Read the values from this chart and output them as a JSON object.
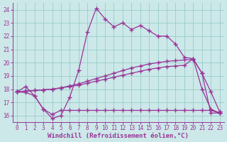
{
  "xlabel": "Windchill (Refroidissement éolien,°C)",
  "bg_color": "#cce8e8",
  "grid_color": "#99cccc",
  "line_color": "#993399",
  "xlim": [
    -0.5,
    23.5
  ],
  "ylim": [
    15.5,
    24.5
  ],
  "yticks": [
    16,
    17,
    18,
    19,
    20,
    21,
    22,
    23,
    24
  ],
  "xticks": [
    0,
    1,
    2,
    3,
    4,
    5,
    6,
    7,
    8,
    9,
    10,
    11,
    12,
    13,
    14,
    15,
    16,
    17,
    18,
    19,
    20,
    21,
    22,
    23
  ],
  "line1_x": [
    0,
    1,
    2,
    3,
    4,
    5,
    6,
    7,
    8,
    9,
    10,
    11,
    12,
    13,
    14,
    15,
    16,
    17,
    18,
    19,
    20,
    21,
    22,
    23
  ],
  "line1_y": [
    17.8,
    18.2,
    17.5,
    16.5,
    15.8,
    16.0,
    17.4,
    19.4,
    22.3,
    24.1,
    23.3,
    22.7,
    23.0,
    22.5,
    22.8,
    22.4,
    22.0,
    22.0,
    21.4,
    20.4,
    20.3,
    19.2,
    16.2,
    16.2
  ],
  "line2_x": [
    0,
    1,
    2,
    3,
    4,
    5,
    6,
    7,
    8,
    9,
    10,
    11,
    12,
    13,
    14,
    15,
    16,
    17,
    18,
    19,
    20,
    21,
    22,
    23
  ],
  "line2_y": [
    17.8,
    17.85,
    17.9,
    17.95,
    18.0,
    18.1,
    18.25,
    18.4,
    18.6,
    18.8,
    19.0,
    19.2,
    19.4,
    19.6,
    19.75,
    19.9,
    20.0,
    20.1,
    20.15,
    20.2,
    20.25,
    19.2,
    17.8,
    16.3
  ],
  "line3_x": [
    0,
    1,
    2,
    3,
    4,
    5,
    6,
    7,
    8,
    9,
    10,
    11,
    12,
    13,
    14,
    15,
    16,
    17,
    18,
    19,
    20,
    21,
    22,
    23
  ],
  "line3_y": [
    17.8,
    17.85,
    17.9,
    17.95,
    18.0,
    18.1,
    18.2,
    18.3,
    18.45,
    18.6,
    18.75,
    18.9,
    19.05,
    19.2,
    19.35,
    19.5,
    19.6,
    19.7,
    19.75,
    19.8,
    20.3,
    18.0,
    16.5,
    16.2
  ],
  "line4_x": [
    0,
    1,
    2,
    3,
    4,
    5,
    6,
    7,
    8,
    9,
    10,
    11,
    12,
    13,
    14,
    15,
    16,
    17,
    18,
    19,
    20,
    21,
    22,
    23
  ],
  "line4_y": [
    17.8,
    17.75,
    17.5,
    16.5,
    16.1,
    16.4,
    16.4,
    16.4,
    16.4,
    16.4,
    16.4,
    16.4,
    16.4,
    16.4,
    16.4,
    16.4,
    16.4,
    16.4,
    16.4,
    16.4,
    16.4,
    16.4,
    16.4,
    16.2
  ],
  "marker": "+",
  "markersize": 4,
  "linewidth": 0.9,
  "tick_fontsize": 5.5,
  "label_fontsize": 6.5
}
